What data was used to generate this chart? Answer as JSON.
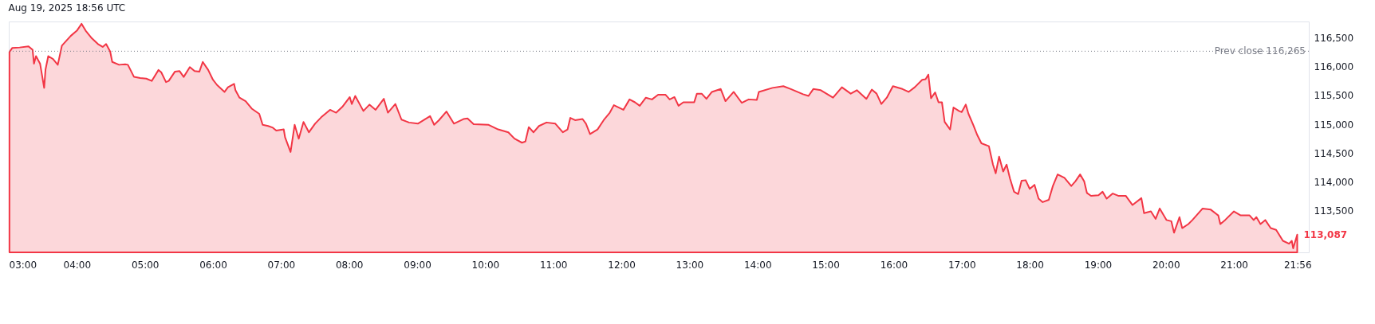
{
  "chart_data": {
    "type": "area",
    "title": "Aug 19, 2025 18:56 UTC",
    "color": "#f23645",
    "x": [
      3.01,
      3.05,
      3.16,
      3.29,
      3.35,
      3.37,
      3.4,
      3.46,
      3.52,
      3.54,
      3.58,
      3.65,
      3.72,
      3.78,
      3.91,
      4.0,
      4.07,
      4.13,
      4.22,
      4.31,
      4.38,
      4.43,
      4.49,
      4.52,
      4.62,
      4.71,
      4.75,
      4.84,
      4.93,
      5.02,
      5.1,
      5.2,
      5.24,
      5.31,
      5.35,
      5.44,
      5.51,
      5.57,
      5.66,
      5.73,
      5.8,
      5.85,
      5.93,
      6.0,
      6.06,
      6.17,
      6.22,
      6.31,
      6.33,
      6.39,
      6.48,
      6.57,
      6.68,
      6.73,
      6.81,
      6.88,
      6.93,
      7.04,
      7.06,
      7.13,
      7.14,
      7.2,
      7.26,
      7.33,
      7.41,
      7.5,
      7.59,
      7.72,
      7.81,
      7.9,
      8.01,
      8.04,
      8.09,
      8.21,
      8.3,
      8.39,
      8.51,
      8.57,
      8.68,
      8.77,
      8.88,
      9.01,
      9.19,
      9.25,
      9.32,
      9.43,
      9.54,
      9.68,
      9.74,
      9.83,
      10.05,
      10.19,
      10.34,
      10.43,
      10.54,
      10.59,
      10.64,
      10.71,
      10.79,
      10.9,
      11.03,
      11.14,
      11.21,
      11.25,
      11.32,
      11.43,
      11.48,
      11.54,
      11.65,
      11.74,
      11.83,
      11.89,
      12.03,
      12.12,
      12.2,
      12.27,
      12.36,
      12.45,
      12.54,
      12.65,
      12.71,
      12.78,
      12.84,
      12.91,
      13.07,
      13.11,
      13.18,
      13.25,
      13.33,
      13.46,
      13.53,
      13.65,
      13.77,
      13.87,
      13.99,
      14.02,
      14.22,
      14.38,
      14.49,
      14.67,
      14.75,
      14.82,
      14.93,
      15.11,
      15.24,
      15.37,
      15.46,
      15.6,
      15.68,
      15.75,
      15.82,
      15.9,
      15.99,
      16.13,
      16.22,
      16.31,
      16.42,
      16.47,
      16.51,
      16.55,
      16.61,
      16.66,
      16.71,
      16.75,
      16.83,
      16.88,
      16.96,
      17.0,
      17.06,
      17.1,
      17.17,
      17.23,
      17.29,
      17.4,
      17.46,
      17.5,
      17.55,
      17.61,
      17.66,
      17.71,
      17.77,
      17.83,
      17.88,
      17.94,
      18.0,
      18.07,
      18.13,
      18.19,
      18.28,
      18.34,
      18.41,
      18.51,
      18.61,
      18.67,
      18.74,
      18.8,
      18.84,
      18.9,
      19.01,
      19.07,
      19.13,
      19.22,
      19.3,
      19.41,
      19.51,
      19.64,
      19.68,
      19.78,
      19.85,
      19.91,
      20.01,
      20.08,
      20.12,
      20.2,
      20.24,
      20.33,
      20.39,
      20.54,
      20.66,
      20.77,
      20.8,
      20.87,
      21.0,
      21.1,
      21.23,
      21.29,
      21.33,
      21.39,
      21.46,
      21.54,
      21.62,
      21.72,
      21.81,
      21.85,
      21.87,
      21.93
    ],
    "values": [
      116250,
      116320,
      116330,
      116350,
      116290,
      116050,
      116180,
      116050,
      115630,
      115950,
      116180,
      116130,
      116030,
      116360,
      116530,
      116620,
      116740,
      116620,
      116490,
      116390,
      116340,
      116390,
      116260,
      116080,
      116030,
      116040,
      116030,
      115820,
      115800,
      115790,
      115750,
      115940,
      115900,
      115730,
      115750,
      115910,
      115920,
      115820,
      115990,
      115920,
      115910,
      116080,
      115940,
      115770,
      115680,
      115560,
      115640,
      115700,
      115590,
      115460,
      115400,
      115270,
      115180,
      114990,
      114970,
      114940,
      114890,
      114910,
      114770,
      114550,
      114520,
      114990,
      114750,
      115040,
      114860,
      115010,
      115120,
      115250,
      115200,
      115300,
      115470,
      115350,
      115490,
      115230,
      115340,
      115250,
      115440,
      115200,
      115350,
      115080,
      115030,
      115010,
      115140,
      114990,
      115070,
      115220,
      115010,
      115090,
      115100,
      115000,
      114990,
      114910,
      114860,
      114750,
      114680,
      114700,
      114950,
      114860,
      114970,
      115030,
      115010,
      114860,
      114910,
      115110,
      115070,
      115090,
      115010,
      114830,
      114910,
      115070,
      115200,
      115330,
      115250,
      115430,
      115380,
      115320,
      115460,
      115430,
      115510,
      115510,
      115430,
      115470,
      115320,
      115380,
      115380,
      115530,
      115530,
      115440,
      115560,
      115610,
      115400,
      115560,
      115370,
      115430,
      115420,
      115560,
      115630,
      115660,
      115610,
      115520,
      115490,
      115610,
      115590,
      115460,
      115640,
      115530,
      115590,
      115440,
      115600,
      115530,
      115350,
      115460,
      115660,
      115610,
      115560,
      115640,
      115770,
      115780,
      115860,
      115450,
      115550,
      115380,
      115380,
      115040,
      114910,
      115290,
      115230,
      115210,
      115340,
      115180,
      114990,
      114810,
      114670,
      114620,
      114300,
      114150,
      114440,
      114180,
      114300,
      114060,
      113830,
      113790,
      114020,
      114030,
      113880,
      113950,
      113710,
      113650,
      113690,
      113930,
      114130,
      114070,
      113930,
      114010,
      114130,
      114010,
      113810,
      113760,
      113770,
      113830,
      113710,
      113800,
      113760,
      113760,
      113600,
      113720,
      113460,
      113490,
      113360,
      113540,
      113340,
      113320,
      113120,
      113390,
      113200,
      113270,
      113340,
      113540,
      113520,
      113420,
      113270,
      113340,
      113490,
      113420,
      113420,
      113340,
      113390,
      113270,
      113340,
      113200,
      113170,
      112980,
      112930,
      112980,
      112850,
      113087
    ],
    "xlim": [
      3,
      22.1
    ],
    "xticks": [
      {
        "value": 3,
        "label": "03:00"
      },
      {
        "value": 4,
        "label": "04:00"
      },
      {
        "value": 5,
        "label": "05:00"
      },
      {
        "value": 6,
        "label": "06:00"
      },
      {
        "value": 7,
        "label": "07:00"
      },
      {
        "value": 8,
        "label": "08:00"
      },
      {
        "value": 9,
        "label": "09:00"
      },
      {
        "value": 10,
        "label": "10:00"
      },
      {
        "value": 11,
        "label": "11:00"
      },
      {
        "value": 12,
        "label": "12:00"
      },
      {
        "value": 13,
        "label": "13:00"
      },
      {
        "value": 14,
        "label": "14:00"
      },
      {
        "value": 15,
        "label": "15:00"
      },
      {
        "value": 16,
        "label": "16:00"
      },
      {
        "value": 17,
        "label": "17:00"
      },
      {
        "value": 18,
        "label": "18:00"
      },
      {
        "value": 19,
        "label": "19:00"
      },
      {
        "value": 20,
        "label": "20:00"
      },
      {
        "value": 21,
        "label": "21:00"
      },
      {
        "value": 21.933,
        "label": "21:56"
      }
    ],
    "ylim": [
      112780,
      116780
    ],
    "yticks": [
      {
        "value": 113500,
        "label": "113,500"
      },
      {
        "value": 114000,
        "label": "114,000"
      },
      {
        "value": 114500,
        "label": "114,500"
      },
      {
        "value": 115000,
        "label": "115,000"
      },
      {
        "value": 115500,
        "label": "115,500"
      },
      {
        "value": 116000,
        "label": "116,000"
      },
      {
        "value": 116500,
        "label": "116,500"
      }
    ],
    "ref_lines": [
      {
        "axis": "y",
        "value": 116265,
        "label": "Prev close 116,265",
        "color": "#787b86",
        "line_style": "dotted"
      }
    ],
    "annotations": [
      {
        "text": "113,087",
        "x": 21.93,
        "y": 113087
      }
    ]
  }
}
